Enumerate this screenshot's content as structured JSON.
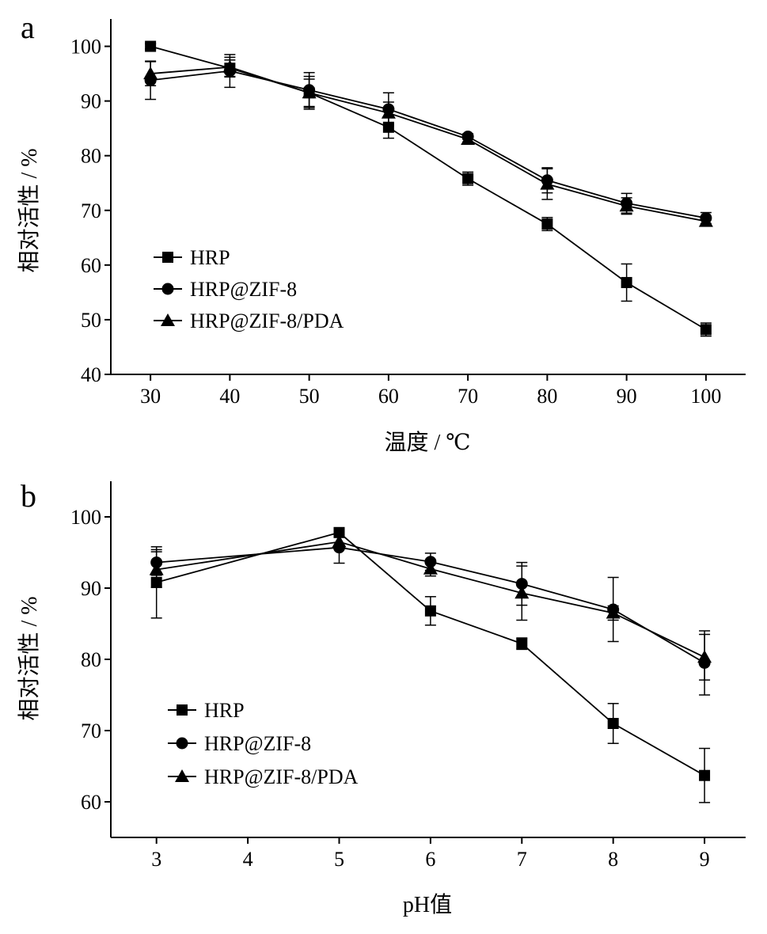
{
  "chart_data": [
    {
      "panel_label": "a",
      "type": "line",
      "xlabel": "温度 / ℃",
      "ylabel": "相对活性 / %",
      "xlim": [
        25,
        105
      ],
      "ylim": [
        40,
        105
      ],
      "xticks": [
        30,
        40,
        50,
        60,
        70,
        80,
        90,
        100
      ],
      "yticks": [
        40,
        50,
        60,
        70,
        80,
        90,
        100
      ],
      "x": [
        30,
        40,
        50,
        60,
        70,
        80,
        90,
        100
      ],
      "legend_position": "left",
      "series": [
        {
          "name": "HRP",
          "marker": "square",
          "values": [
            100,
            96,
            91.5,
            85.2,
            75.8,
            67.5,
            56.8,
            48.2
          ],
          "errors": [
            0.5,
            1.5,
            2.5,
            2.0,
            1.2,
            1.2,
            3.4,
            1.2
          ]
        },
        {
          "name": "HRP@ZIF-8",
          "marker": "circle",
          "values": [
            93.8,
            95.5,
            92.0,
            88.5,
            83.5,
            75.5,
            71.3,
            68.6
          ],
          "errors": [
            3.5,
            3.0,
            3.2,
            3.0,
            0.5,
            2.3,
            1.8,
            1.0
          ]
        },
        {
          "name": "HRP@ZIF-8/PDA",
          "marker": "triangle",
          "values": [
            95.0,
            96.2,
            91.5,
            87.8,
            83.0,
            74.8,
            70.8,
            68.0
          ],
          "errors": [
            2.2,
            1.8,
            3.0,
            2.0,
            0.5,
            2.8,
            1.5,
            0.8
          ]
        }
      ]
    },
    {
      "panel_label": "b",
      "type": "line",
      "xlabel": "pH值",
      "ylabel": "相对活性 / %",
      "xlim": [
        2.5,
        9.45
      ],
      "ylim": [
        55,
        105
      ],
      "xticks": [
        3,
        4,
        5,
        6,
        7,
        8,
        9
      ],
      "yticks": [
        60,
        70,
        80,
        90,
        100
      ],
      "legend_position": "left",
      "series": [
        {
          "name": "HRP",
          "marker": "square",
          "x": [
            3,
            5,
            6,
            7,
            8,
            9
          ],
          "values": [
            90.8,
            97.8,
            86.8,
            82.2,
            71.0,
            63.7
          ],
          "errors": [
            5.0,
            0.5,
            2.0,
            0.8,
            2.8,
            3.8
          ]
        },
        {
          "name": "HRP@ZIF-8",
          "marker": "circle",
          "x": [
            3,
            5,
            6,
            7,
            8,
            9
          ],
          "values": [
            93.6,
            95.7,
            93.7,
            90.6,
            87.0,
            79.5
          ],
          "errors": [
            1.8,
            2.2,
            1.2,
            3.0,
            4.5,
            4.5
          ]
        },
        {
          "name": "HRP@ZIF-8/PDA",
          "marker": "triangle",
          "x": [
            3,
            5,
            6,
            7,
            8,
            9
          ],
          "values": [
            92.6,
            96.5,
            92.7,
            89.3,
            86.5,
            80.3
          ],
          "errors": [
            2.5,
            1.0,
            1.0,
            3.8,
            1.0,
            3.2
          ]
        }
      ]
    }
  ]
}
